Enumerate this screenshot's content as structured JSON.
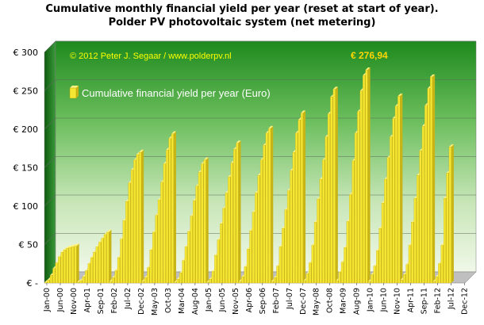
{
  "titles": {
    "line1": "Cumulative monthly financial  yield per year (reset at start of year).",
    "line2": "Polder PV photovoltaic system (net metering)"
  },
  "credit": "© 2012 Peter J. Segaar / www.polderpv.nl",
  "max_label": "€ 276,94",
  "colors": {
    "bar_front": "#f5e633",
    "bar_side": "#c8b414",
    "bar_top": "#fff380",
    "plot_top": "#1e8a1e",
    "plot_bottom": "#f0f8e8"
  },
  "chart_data": {
    "type": "bar",
    "ylim": [
      0,
      300
    ],
    "y_ticks": [
      "€ -",
      "€ 50",
      "€ 100",
      "€ 150",
      "€ 200",
      "€ 250",
      "€ 300"
    ],
    "grid": true,
    "legend": {
      "position": "top-left",
      "entries": [
        "Cumulative financial yield per year (Euro)"
      ]
    },
    "x_tick_labels": [
      "Jan-00",
      "Jun-00",
      "Nov-00",
      "Apr-01",
      "Sep-01",
      "Feb-02",
      "Jul-02",
      "Dec-02",
      "May-03",
      "Oct-03",
      "Mar-04",
      "Aug-04",
      "Jan-05",
      "Jun-05",
      "Nov-05",
      "Apr-06",
      "Sep-06",
      "Feb-07",
      "Jul-07",
      "Dec-07",
      "May-08",
      "Oct-08",
      "Mar-09",
      "Aug-09",
      "Jan-10",
      "Jun-10",
      "Nov-10",
      "Apr-11",
      "Sep-11",
      "Feb-12",
      "Jul-12",
      "Dec-12"
    ],
    "series": [
      {
        "name": "Cumulative financial yield per year (Euro)",
        "start": "Jan-00",
        "values": [
          1,
          4,
          10,
          19,
          26,
          34,
          40,
          43,
          45,
          46,
          47,
          48,
          1,
          3,
          8,
          16,
          25,
          33,
          40,
          47,
          53,
          58,
          63,
          66,
          2,
          7,
          16,
          33,
          57,
          81,
          106,
          130,
          147,
          160,
          167,
          170,
          2,
          7,
          20,
          43,
          66,
          88,
          108,
          131,
          155,
          173,
          188,
          194,
          1,
          5,
          13,
          29,
          47,
          67,
          87,
          107,
          126,
          144,
          155,
          160,
          1,
          5,
          15,
          36,
          56,
          77,
          97,
          117,
          138,
          156,
          174,
          182,
          2,
          8,
          21,
          44,
          68,
          92,
          117,
          140,
          160,
          179,
          195,
          201,
          2,
          7,
          22,
          47,
          71,
          95,
          120,
          146,
          170,
          195,
          212,
          221,
          3,
          12,
          26,
          49,
          79,
          109,
          135,
          160,
          190,
          220,
          242,
          252,
          3,
          14,
          27,
          46,
          80,
          115,
          159,
          195,
          223,
          250,
          270,
          277,
          2,
          11,
          22,
          42,
          71,
          104,
          135,
          163,
          190,
          214,
          230,
          243,
          4,
          11,
          24,
          49,
          79,
          110,
          140,
          172,
          204,
          231,
          253,
          268,
          2,
          8,
          25,
          49,
          110,
          143,
          177
        ]
      }
    ]
  }
}
